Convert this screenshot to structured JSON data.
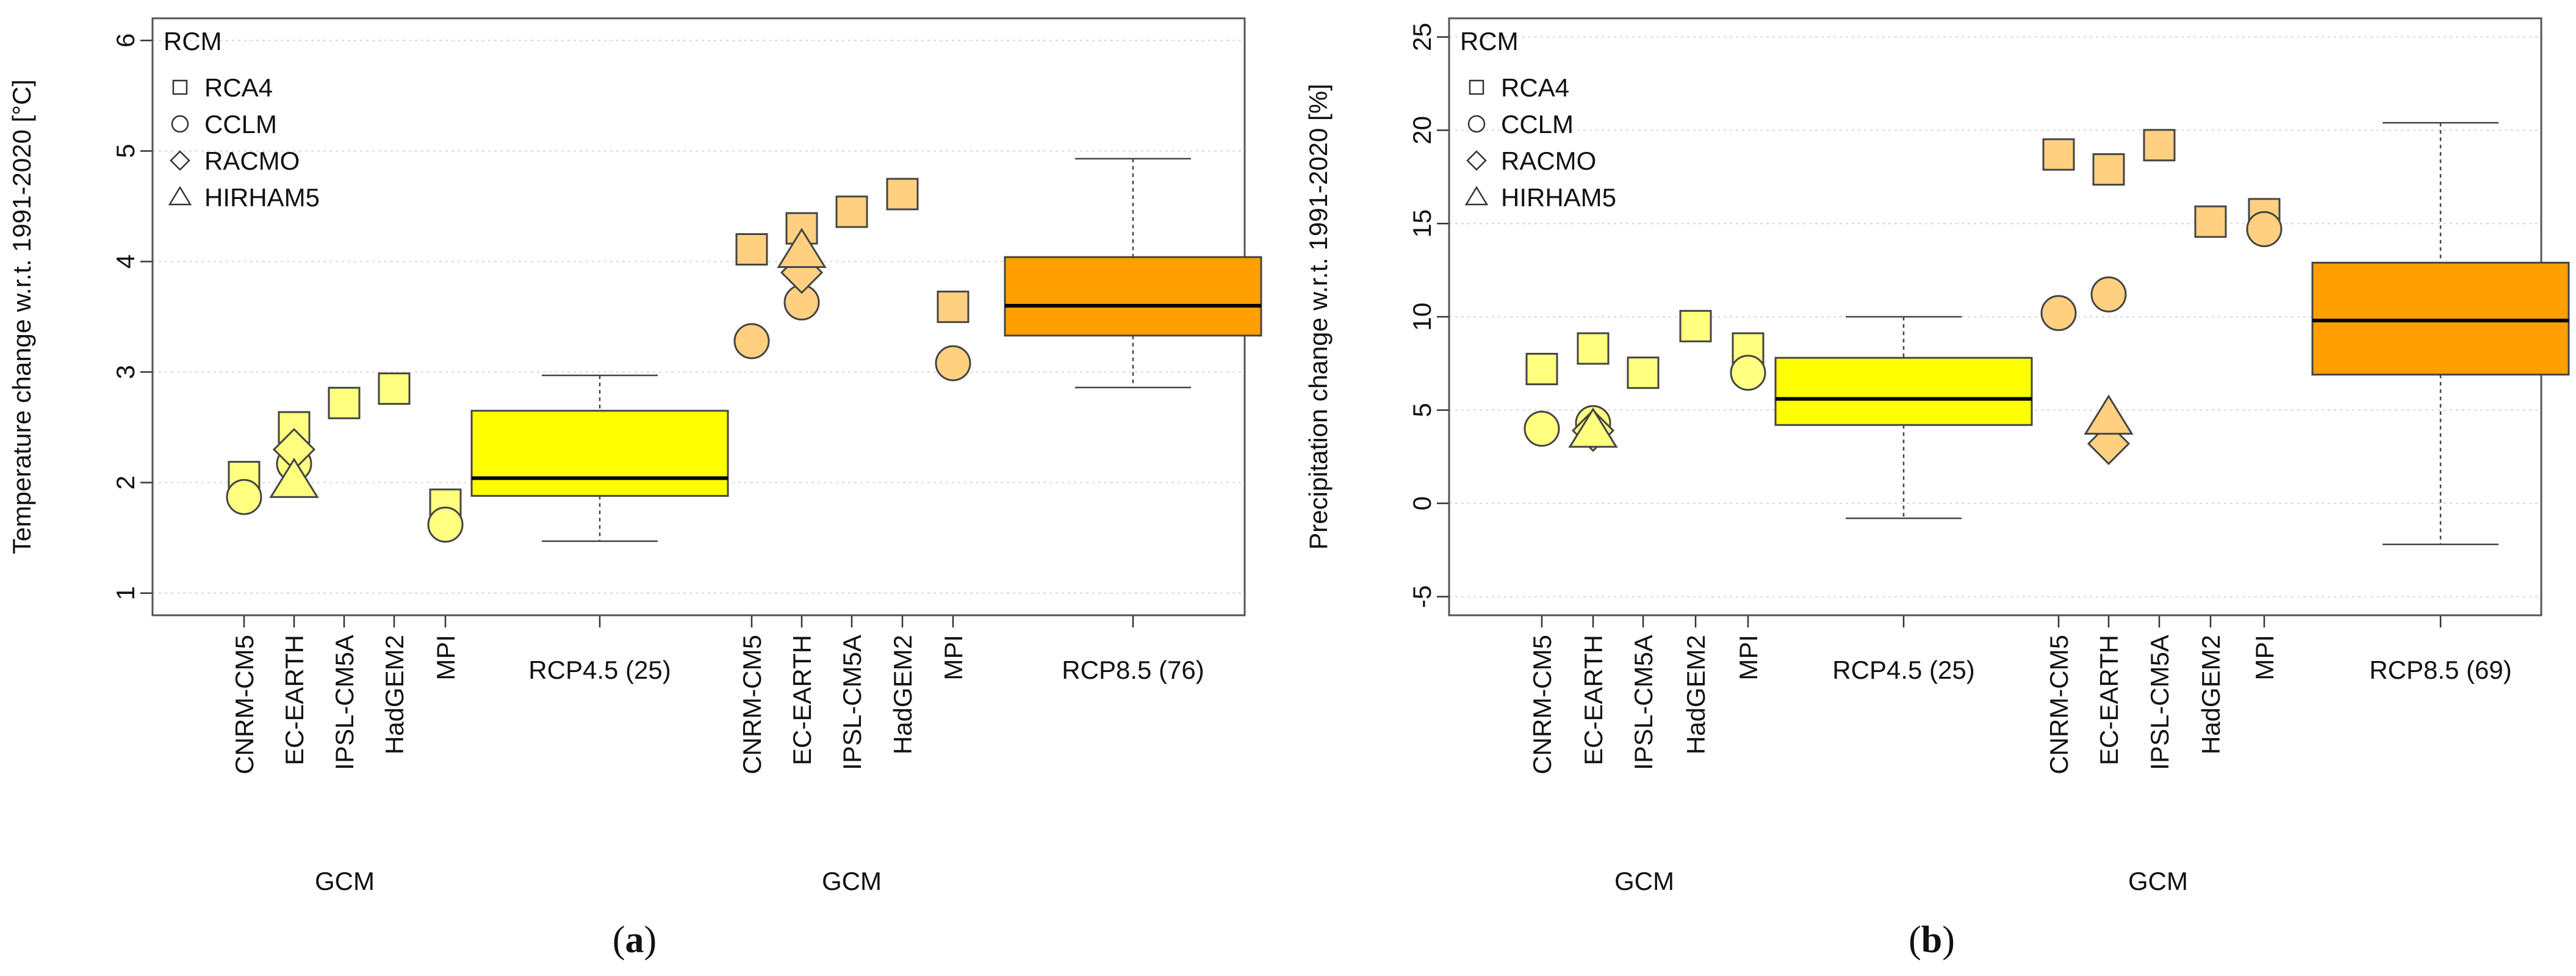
{
  "colors": {
    "rcp45": "#ffff00",
    "rcp45_light": "#ffff80",
    "rcp85": "#ffa000",
    "rcp85_light": "#ffd080",
    "frame": "#555555",
    "grid": "#d8d8d8"
  },
  "chart_data": [
    {
      "type": "scatter+boxplot",
      "panel_label": "a",
      "ylabel": "Temperature change w.r.t. 1991-2020 [°C]",
      "ylim": [
        0.8,
        6.2
      ],
      "yticks": [
        1,
        2,
        3,
        4,
        5,
        6
      ],
      "grid": true,
      "legend": {
        "title": "RCM",
        "position": "top-left",
        "entries": [
          {
            "label": "RCA4",
            "shape": "square"
          },
          {
            "label": "CCLM",
            "shape": "circle"
          },
          {
            "label": "RACMO",
            "shape": "diamond"
          },
          {
            "label": "HIRHAM5",
            "shape": "triangle"
          }
        ]
      },
      "xlabels": [
        "GCM",
        "GCM"
      ],
      "groups": [
        {
          "scenario": "RCP4.5",
          "color": "rcp45_light",
          "gcms": [
            {
              "name": "CNRM-CM5",
              "points": [
                {
                  "rcm": "square",
                  "y": 2.05
                },
                {
                  "rcm": "circle",
                  "y": 1.87
                }
              ]
            },
            {
              "name": "EC-EARTH",
              "points": [
                {
                  "rcm": "square",
                  "y": 2.5
                },
                {
                  "rcm": "circle",
                  "y": 2.17
                },
                {
                  "rcm": "diamond",
                  "y": 2.3
                },
                {
                  "rcm": "triangle",
                  "y": 2.0
                }
              ]
            },
            {
              "name": "IPSL-CM5A",
              "points": [
                {
                  "rcm": "square",
                  "y": 2.72
                }
              ]
            },
            {
              "name": "HadGEM2",
              "points": [
                {
                  "rcm": "square",
                  "y": 2.85
                }
              ]
            },
            {
              "name": "MPI",
              "points": [
                {
                  "rcm": "square",
                  "y": 1.8
                },
                {
                  "rcm": "circle",
                  "y": 1.62
                }
              ]
            }
          ],
          "box": {
            "label": "RCP4.5 (25)",
            "color": "rcp45",
            "min": 1.47,
            "q1": 1.88,
            "median": 2.04,
            "q3": 2.65,
            "max": 2.97
          }
        },
        {
          "scenario": "RCP8.5",
          "color": "rcp85_light",
          "gcms": [
            {
              "name": "CNRM-CM5",
              "points": [
                {
                  "rcm": "square",
                  "y": 4.11
                },
                {
                  "rcm": "circle",
                  "y": 3.28
                }
              ]
            },
            {
              "name": "EC-EARTH",
              "points": [
                {
                  "rcm": "square",
                  "y": 4.3
                },
                {
                  "rcm": "circle",
                  "y": 3.63
                },
                {
                  "rcm": "diamond",
                  "y": 3.9
                },
                {
                  "rcm": "triangle",
                  "y": 4.08
                }
              ]
            },
            {
              "name": "IPSL-CM5A",
              "points": [
                {
                  "rcm": "square",
                  "y": 4.45
                }
              ]
            },
            {
              "name": "HadGEM2",
              "points": [
                {
                  "rcm": "square",
                  "y": 4.61
                }
              ]
            },
            {
              "name": "MPI",
              "points": [
                {
                  "rcm": "square",
                  "y": 3.59
                },
                {
                  "rcm": "circle",
                  "y": 3.08
                }
              ]
            }
          ],
          "box": {
            "label": "RCP8.5 (76)",
            "color": "rcp85",
            "min": 2.86,
            "q1": 3.33,
            "median": 3.6,
            "q3": 4.04,
            "max": 4.93
          }
        }
      ]
    },
    {
      "type": "scatter+boxplot",
      "panel_label": "b",
      "ylabel": "Precipitation change w.r.t. 1991-2020 [%]",
      "ylim": [
        -6,
        26
      ],
      "yticks": [
        -5,
        0,
        5,
        10,
        15,
        20,
        25
      ],
      "grid": true,
      "legend": {
        "title": "RCM",
        "position": "top-left",
        "entries": [
          {
            "label": "RCA4",
            "shape": "square"
          },
          {
            "label": "CCLM",
            "shape": "circle"
          },
          {
            "label": "RACMO",
            "shape": "diamond"
          },
          {
            "label": "HIRHAM5",
            "shape": "triangle"
          }
        ]
      },
      "xlabels": [
        "GCM",
        "GCM"
      ],
      "groups": [
        {
          "scenario": "RCP4.5",
          "color": "rcp45_light",
          "gcms": [
            {
              "name": "CNRM-CM5",
              "points": [
                {
                  "rcm": "square",
                  "y": 7.2
                },
                {
                  "rcm": "circle",
                  "y": 4.0
                }
              ]
            },
            {
              "name": "EC-EARTH",
              "points": [
                {
                  "rcm": "square",
                  "y": 8.3
                },
                {
                  "rcm": "circle",
                  "y": 4.3
                },
                {
                  "rcm": "diamond",
                  "y": 3.9
                },
                {
                  "rcm": "triangle",
                  "y": 3.8
                }
              ]
            },
            {
              "name": "IPSL-CM5A",
              "points": [
                {
                  "rcm": "square",
                  "y": 7.0
                }
              ]
            },
            {
              "name": "HadGEM2",
              "points": [
                {
                  "rcm": "square",
                  "y": 9.5
                }
              ]
            },
            {
              "name": "MPI",
              "points": [
                {
                  "rcm": "square",
                  "y": 8.3
                },
                {
                  "rcm": "circle",
                  "y": 7.0
                }
              ]
            }
          ],
          "box": {
            "label": "RCP4.5 (25)",
            "color": "rcp45",
            "min": -0.8,
            "q1": 4.2,
            "median": 5.6,
            "q3": 7.8,
            "max": 10.0
          }
        },
        {
          "scenario": "RCP8.5",
          "color": "rcp85_light",
          "gcms": [
            {
              "name": "CNRM-CM5",
              "points": [
                {
                  "rcm": "square",
                  "y": 18.7
                },
                {
                  "rcm": "circle",
                  "y": 10.2
                }
              ]
            },
            {
              "name": "EC-EARTH",
              "points": [
                {
                  "rcm": "square",
                  "y": 17.9
                },
                {
                  "rcm": "circle",
                  "y": 11.2
                },
                {
                  "rcm": "diamond",
                  "y": 3.2
                },
                {
                  "rcm": "triangle",
                  "y": 4.5
                }
              ]
            },
            {
              "name": "IPSL-CM5A",
              "points": [
                {
                  "rcm": "square",
                  "y": 19.2
                }
              ]
            },
            {
              "name": "HadGEM2",
              "points": [
                {
                  "rcm": "square",
                  "y": 15.1
                }
              ]
            },
            {
              "name": "MPI",
              "points": [
                {
                  "rcm": "square",
                  "y": 15.5
                },
                {
                  "rcm": "circle",
                  "y": 14.7
                }
              ]
            }
          ],
          "box": {
            "label": "RCP8.5 (69)",
            "color": "rcp85",
            "min": -2.2,
            "q1": 6.9,
            "median": 9.8,
            "q3": 12.9,
            "max": 20.4
          }
        }
      ]
    }
  ]
}
